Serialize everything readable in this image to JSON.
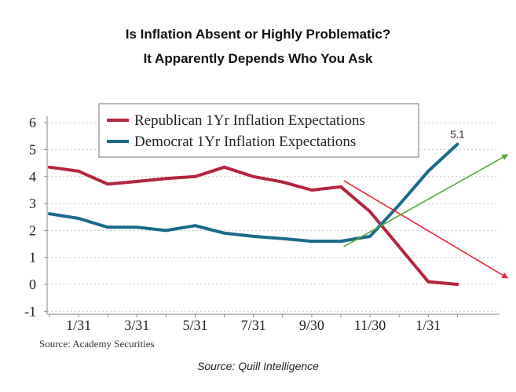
{
  "title_line1": "Is Inflation Absent or Highly Problematic?",
  "title_line2": "It Apparently Depends Who You Ask",
  "caption": "Source: Quill Intelligence",
  "chart_data": {
    "type": "line",
    "inner_source": "Source: Academy Securities",
    "annotation": "5.1",
    "ylim": [
      -1,
      6
    ],
    "yticks": [
      "6",
      "5",
      "4",
      "3",
      "2",
      "1",
      "0",
      "-1"
    ],
    "ytick_values": [
      6,
      5,
      4,
      3,
      2,
      1,
      0,
      -1
    ],
    "x_tick_labels": [
      "1/31",
      "3/31",
      "5/31",
      "7/31",
      "9/30",
      "11/30",
      "1/31"
    ],
    "x_tick_index": [
      1,
      3,
      5,
      7,
      9,
      11,
      13
    ],
    "legend_position": "top-center",
    "series": [
      {
        "name": "Republican 1Yr Inflation Expectations",
        "color": "#b5243e",
        "values": [
          4.35,
          4.2,
          3.72,
          3.82,
          3.93,
          4.0,
          4.35,
          4.0,
          3.8,
          3.5,
          3.62,
          2.7,
          1.4,
          0.1,
          0.0
        ]
      },
      {
        "name": "Democrat 1Yr Inflation Expectations",
        "color": "#1a6b8a",
        "values": [
          2.62,
          2.45,
          2.12,
          2.12,
          2.0,
          2.18,
          1.9,
          1.78,
          1.7,
          1.6,
          1.6,
          1.78,
          2.95,
          4.2,
          5.2
        ]
      }
    ],
    "trend_arrows": [
      {
        "color": "#e8283a",
        "from": [
          10.1,
          3.85
        ],
        "to": [
          15.7,
          0.25
        ]
      },
      {
        "color": "#5aa83c",
        "from": [
          10.1,
          1.4
        ],
        "to": [
          15.7,
          4.8
        ]
      }
    ]
  }
}
